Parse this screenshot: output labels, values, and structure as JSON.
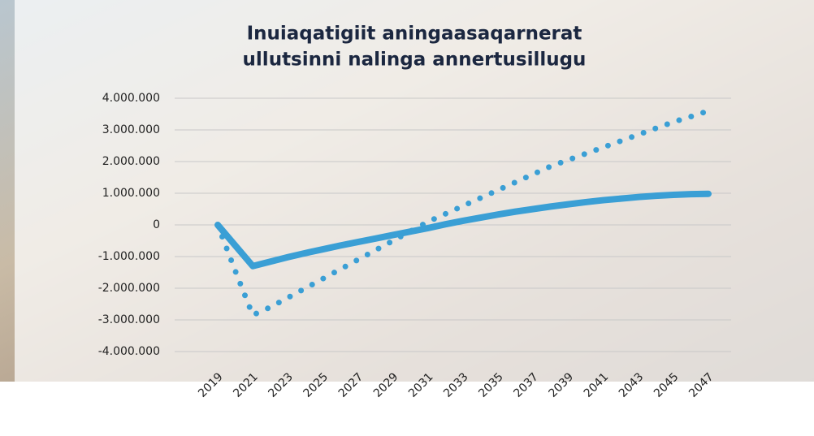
{
  "chart_data": {
    "type": "line",
    "title": [
      "Inuiaqatigiit aningaasaqarnerat",
      "ullutsinni nalinga annertusillugu"
    ],
    "categories": [
      "2019",
      null,
      "2021",
      null,
      "2023",
      null,
      "2025",
      null,
      "2027",
      null,
      "2029",
      null,
      "2031",
      null,
      "2033",
      null,
      "2035",
      null,
      "2037",
      null,
      "2039",
      null,
      "2041",
      null,
      "2043",
      null,
      "2045",
      null,
      "2047"
    ],
    "series": [
      {
        "color": "#3a9fd5",
        "line_style": "solid",
        "values": [
          0,
          -650000,
          -1300000,
          -1160000,
          -1020000,
          -890000,
          -770000,
          -650000,
          -540000,
          -430000,
          -320000,
          -210000,
          -100000,
          20000,
          130000,
          230000,
          330000,
          420000,
          500000,
          580000,
          650000,
          720000,
          780000,
          830000,
          880000,
          920000,
          950000,
          970000,
          980000
        ]
      },
      {
        "color": "#3a9fd5",
        "line_style": "dotted",
        "values": [
          0,
          -1450000,
          -2850000,
          -2600000,
          -2300000,
          -2000000,
          -1700000,
          -1400000,
          -1100000,
          -800000,
          -500000,
          -200000,
          100000,
          350000,
          600000,
          850000,
          1100000,
          1350000,
          1600000,
          1850000,
          2050000,
          2250000,
          2450000,
          2650000,
          2850000,
          3050000,
          3250000,
          3420000,
          3600000
        ]
      }
    ],
    "ylim": [
      -4000000,
      4000000
    ],
    "yticks": [
      {
        "value": -4000000,
        "label": "-4.000.000"
      },
      {
        "value": -3000000,
        "label": "-3.000.000"
      },
      {
        "value": -2000000,
        "label": "-2.000.000"
      },
      {
        "value": -1000000,
        "label": "-1.000.000"
      },
      0,
      {
        "value": 1000000,
        "label": "1.000.000"
      },
      {
        "value": 2000000,
        "label": "2.000.000"
      },
      {
        "value": 3000000,
        "label": "3.000.000"
      },
      {
        "value": 4000000,
        "label": "4.000.000"
      }
    ],
    "grid": true
  }
}
